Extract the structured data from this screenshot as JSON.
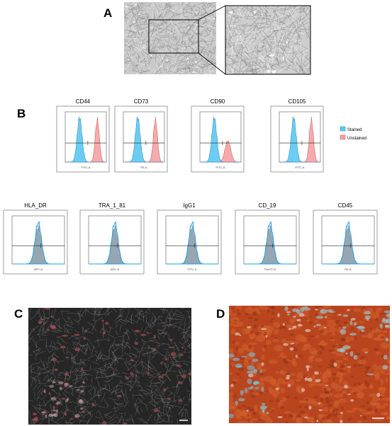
{
  "panels": {
    "a": "A",
    "b": "B",
    "c": "C",
    "d": "D"
  },
  "flow": {
    "positive": [
      {
        "marker": "CD44",
        "axis": "FITC-A"
      },
      {
        "marker": "CD73",
        "axis": "PE-A"
      },
      {
        "marker": "CD90",
        "axis": "FITC-A"
      },
      {
        "marker": "CD105",
        "axis": "FITC-A"
      }
    ],
    "negative": [
      {
        "marker": "HLA_DR",
        "axis": "APC-A"
      },
      {
        "marker": "TRA_1_81",
        "axis": "APC-A"
      },
      {
        "marker": "IgG1",
        "axis": "FITC-A"
      },
      {
        "marker": "CD_19",
        "axis": "PerCP-A"
      },
      {
        "marker": "CD45",
        "axis": "PE-A"
      }
    ]
  },
  "legend": {
    "stained": "Stained",
    "unstained": "Unstained"
  }
}
